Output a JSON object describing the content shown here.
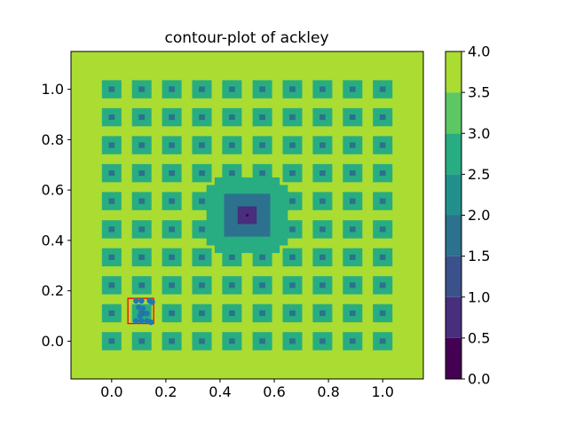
{
  "chart_data": {
    "type": "heatmap",
    "title": "contour-plot of ackley",
    "xlabel": "",
    "ylabel": "",
    "xlim": [
      -0.15,
      1.15
    ],
    "ylim": [
      -0.15,
      1.15
    ],
    "x_ticks": [
      "0.0",
      "0.2",
      "0.4",
      "0.6",
      "0.8",
      "1.0"
    ],
    "y_ticks": [
      "0.0",
      "0.2",
      "0.4",
      "0.6",
      "0.8",
      "1.0"
    ],
    "x_tick_values": [
      0.0,
      0.2,
      0.4,
      0.6,
      0.8,
      1.0
    ],
    "y_tick_values": [
      0.0,
      0.2,
      0.4,
      0.6,
      0.8,
      1.0
    ],
    "colorbar": {
      "ticks": [
        "0.0",
        "0.5",
        "1.0",
        "1.5",
        "2.0",
        "2.5",
        "3.0",
        "3.5",
        "4.0"
      ],
      "tick_values": [
        0.0,
        0.5,
        1.0,
        1.5,
        2.0,
        2.5,
        3.0,
        3.5,
        4.0
      ],
      "levels": [
        0.0,
        0.5,
        1.0,
        1.5,
        2.0,
        2.5,
        3.0,
        3.5,
        4.0
      ],
      "colors": [
        "#440154",
        "#472f7d",
        "#3b518b",
        "#2c718e",
        "#21908d",
        "#27ad81",
        "#5cc863",
        "#aadc32",
        "#d8e219"
      ]
    },
    "background_value": 3.75,
    "grid_centers": [
      0.0,
      0.111,
      0.222,
      0.333,
      0.444,
      0.556,
      0.667,
      0.778,
      0.889,
      1.0
    ],
    "local_minimum_outer_value": 2.75,
    "local_minimum_inner_value": 1.75,
    "central_basin": {
      "center": [
        0.5,
        0.5
      ],
      "levels": [
        {
          "value": 2.75,
          "half_width": 0.15
        },
        {
          "value": 1.75,
          "half_width": 0.085
        },
        {
          "value": 0.75,
          "half_width": 0.035
        },
        {
          "value": 0.25,
          "half_width": 0.005
        }
      ]
    },
    "samples": {
      "color": "#1f77b4",
      "points": [
        [
          0.09,
          0.16
        ],
        [
          0.11,
          0.16
        ],
        [
          0.14,
          0.16
        ],
        [
          0.15,
          0.155
        ],
        [
          0.1,
          0.135
        ],
        [
          0.115,
          0.13
        ],
        [
          0.13,
          0.11
        ],
        [
          0.105,
          0.1
        ],
        [
          0.09,
          0.08
        ],
        [
          0.11,
          0.08
        ],
        [
          0.13,
          0.08
        ],
        [
          0.145,
          0.075
        ]
      ]
    },
    "highlight_box": {
      "color": "#ff0000",
      "x_range": [
        0.06,
        0.155
      ],
      "y_range": [
        0.07,
        0.17
      ]
    }
  }
}
